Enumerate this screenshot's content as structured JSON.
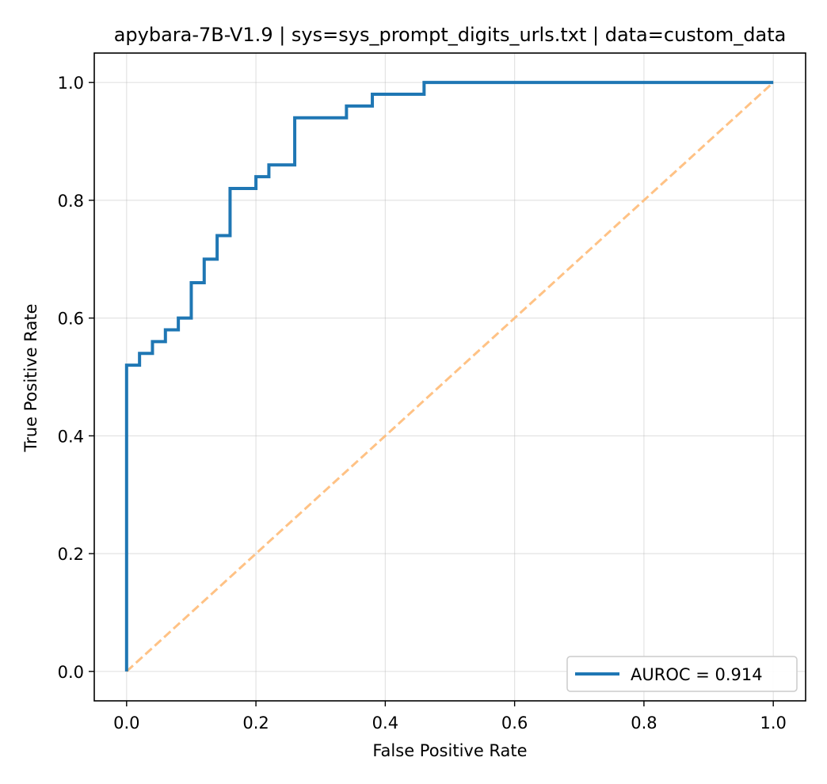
{
  "chart_data": {
    "type": "line",
    "title": "apybara-7B-V1.9 | sys=sys_prompt_digits_urls.txt | data=custom_data",
    "xlabel": "False Positive Rate",
    "ylabel": "True Positive Rate",
    "xlim": [
      -0.05,
      1.05
    ],
    "ylim": [
      -0.05,
      1.05
    ],
    "xticks": [
      0.0,
      0.2,
      0.4,
      0.6,
      0.8,
      1.0
    ],
    "yticks": [
      0.0,
      0.2,
      0.4,
      0.6,
      0.8,
      1.0
    ],
    "xtick_labels": [
      "0.0",
      "0.2",
      "0.4",
      "0.6",
      "0.8",
      "1.0"
    ],
    "ytick_labels": [
      "0.0",
      "0.2",
      "0.4",
      "0.6",
      "0.8",
      "1.0"
    ],
    "grid": true,
    "legend_position": "lower-right",
    "series": [
      {
        "name": "AUROC = 0.914",
        "color": "#1f77b4",
        "style": "solid",
        "x": [
          0.0,
          0.0,
          0.02,
          0.02,
          0.04,
          0.04,
          0.06,
          0.06,
          0.08,
          0.08,
          0.1,
          0.1,
          0.12,
          0.12,
          0.14,
          0.14,
          0.16,
          0.16,
          0.2,
          0.2,
          0.22,
          0.22,
          0.26,
          0.26,
          0.34,
          0.34,
          0.38,
          0.38,
          0.46,
          0.46,
          1.0
        ],
        "y": [
          0.0,
          0.52,
          0.52,
          0.54,
          0.54,
          0.56,
          0.56,
          0.58,
          0.58,
          0.6,
          0.6,
          0.66,
          0.66,
          0.7,
          0.7,
          0.74,
          0.74,
          0.82,
          0.82,
          0.84,
          0.84,
          0.86,
          0.86,
          0.94,
          0.94,
          0.96,
          0.96,
          0.98,
          0.98,
          1.0,
          1.0
        ]
      },
      {
        "color": "#ffbb78",
        "style": "dashed",
        "x": [
          0.0,
          1.0
        ],
        "y": [
          0.0,
          1.0
        ]
      }
    ]
  }
}
